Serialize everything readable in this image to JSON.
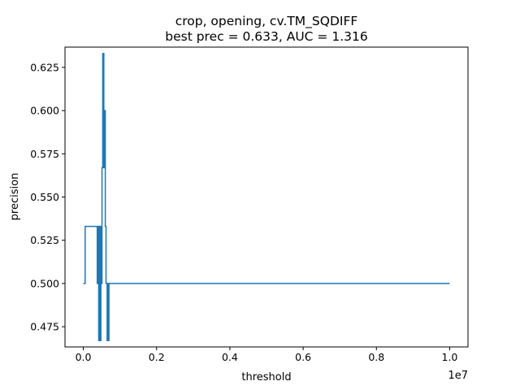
{
  "chart_data": {
    "type": "line",
    "title_line1": "crop, opening, cv.TM_SQDIFF",
    "title_line2": "best prec = 0.633, AUC = 1.316",
    "xlabel": "threshold",
    "ylabel": "precision",
    "x_offset_text": "1e7",
    "xlim": [
      -500000,
      10500000
    ],
    "ylim": [
      0.4633,
      0.6367
    ],
    "x_ticks": [
      0,
      2000000,
      4000000,
      6000000,
      8000000,
      10000000
    ],
    "x_tick_labels": [
      "0.0",
      "0.2",
      "0.4",
      "0.6",
      "0.8",
      "1.0"
    ],
    "y_ticks": [
      0.475,
      0.5,
      0.525,
      0.55,
      0.575,
      0.6,
      0.625
    ],
    "y_tick_labels": [
      "0.475",
      "0.500",
      "0.525",
      "0.550",
      "0.575",
      "0.600",
      "0.625"
    ],
    "grid": false,
    "series": [
      {
        "color": "#1f77b4",
        "x": [
          0,
          50000,
          50000,
          380000,
          380000,
          400000,
          400000,
          420000,
          420000,
          440000,
          440000,
          460000,
          460000,
          480000,
          480000,
          500000,
          500000,
          510000,
          510000,
          530000,
          530000,
          540000,
          540000,
          550000,
          550000,
          560000,
          560000,
          570000,
          570000,
          580000,
          580000,
          590000,
          590000,
          600000,
          600000,
          610000,
          610000,
          620000,
          620000,
          650000,
          650000,
          660000,
          660000,
          680000,
          680000,
          700000,
          700000,
          10000000
        ],
        "y": [
          0.5,
          0.5,
          0.533,
          0.533,
          0.5,
          0.5,
          0.533,
          0.533,
          0.467,
          0.467,
          0.533,
          0.533,
          0.467,
          0.467,
          0.533,
          0.533,
          0.5,
          0.5,
          0.567,
          0.567,
          0.633,
          0.633,
          0.6,
          0.6,
          0.633,
          0.633,
          0.567,
          0.567,
          0.6,
          0.6,
          0.567,
          0.567,
          0.6,
          0.6,
          0.533,
          0.533,
          0.533,
          0.533,
          0.5,
          0.5,
          0.467,
          0.467,
          0.5,
          0.5,
          0.467,
          0.467,
          0.5,
          0.5
        ]
      }
    ]
  }
}
